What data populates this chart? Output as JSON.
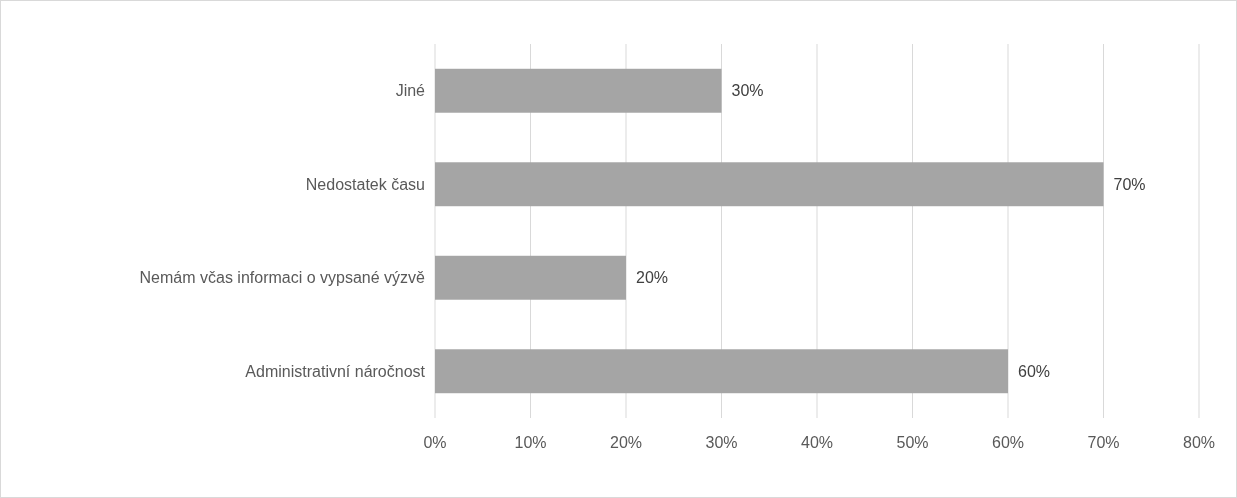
{
  "chart_data": {
    "type": "bar",
    "orientation": "horizontal",
    "categories": [
      "Jiné",
      "Nedostatek času",
      "Nemám včas informaci o vypsané výzvě",
      "Administrativní náročnost"
    ],
    "values": [
      30,
      70,
      20,
      60
    ],
    "color": "#a5a5a5",
    "value_labels": [
      "30%",
      "70%",
      "20%",
      "60%"
    ],
    "xlim": [
      0,
      80
    ],
    "xticks": [
      {
        "value": 0,
        "label": "0%"
      },
      {
        "value": 10,
        "label": "10%"
      },
      {
        "value": 20,
        "label": "20%"
      },
      {
        "value": 30,
        "label": "30%"
      },
      {
        "value": 40,
        "label": "40%"
      },
      {
        "value": 50,
        "label": "50%"
      },
      {
        "value": 60,
        "label": "60%"
      },
      {
        "value": 70,
        "label": "70%"
      },
      {
        "value": 80,
        "label": "80%"
      }
    ],
    "grid": "x"
  }
}
